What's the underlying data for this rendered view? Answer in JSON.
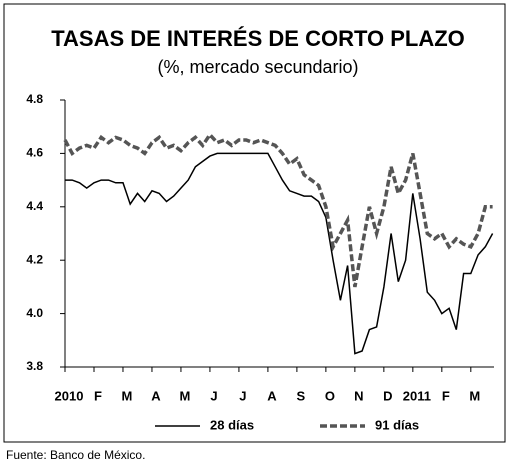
{
  "chart_data": {
    "type": "line",
    "title": "TASAS DE INTERÉS DE CORTO PLAZO",
    "subtitle": "(%, mercado secundario)",
    "source": "Fuente: Banco de México.",
    "x": [
      0,
      0.25,
      0.5,
      0.75,
      1,
      1.25,
      1.5,
      1.75,
      2,
      2.25,
      2.5,
      2.75,
      3,
      3.25,
      3.5,
      3.75,
      4,
      4.25,
      4.5,
      4.75,
      5,
      5.25,
      5.5,
      5.75,
      6,
      6.25,
      6.5,
      6.75,
      7,
      7.25,
      7.5,
      7.75,
      8,
      8.25,
      8.5,
      8.75,
      9,
      9.25,
      9.5,
      9.75,
      10,
      10.25,
      10.5,
      10.75,
      11,
      11.25,
      11.5,
      11.75,
      12,
      12.25,
      12.5,
      12.75,
      13,
      13.25,
      13.5,
      13.75,
      14,
      14.25,
      14.5,
      14.75
    ],
    "series": [
      {
        "name": "28 días",
        "color": "#000000",
        "style": "solid",
        "values": [
          4.5,
          4.5,
          4.49,
          4.47,
          4.49,
          4.5,
          4.5,
          4.49,
          4.49,
          4.41,
          4.45,
          4.42,
          4.46,
          4.45,
          4.42,
          4.44,
          4.47,
          4.5,
          4.55,
          4.57,
          4.59,
          4.6,
          4.6,
          4.6,
          4.6,
          4.6,
          4.6,
          4.6,
          4.6,
          4.55,
          4.5,
          4.46,
          4.45,
          4.44,
          4.44,
          4.42,
          4.36,
          4.2,
          4.05,
          4.18,
          3.85,
          3.86,
          3.94,
          3.95,
          4.1,
          4.3,
          4.12,
          4.2,
          4.45,
          4.28,
          4.08,
          4.05,
          4.0,
          4.02,
          3.94,
          4.15,
          4.15,
          4.22,
          4.25,
          4.3
        ]
      },
      {
        "name": "91 días",
        "color": "#555555",
        "style": "dashed",
        "values": [
          4.65,
          4.6,
          4.62,
          4.63,
          4.62,
          4.66,
          4.64,
          4.66,
          4.65,
          4.63,
          4.62,
          4.6,
          4.64,
          4.66,
          4.62,
          4.63,
          4.61,
          4.64,
          4.66,
          4.63,
          4.67,
          4.64,
          4.65,
          4.63,
          4.65,
          4.65,
          4.64,
          4.65,
          4.64,
          4.63,
          4.6,
          4.56,
          4.58,
          4.52,
          4.5,
          4.48,
          4.4,
          4.25,
          4.3,
          4.35,
          4.1,
          4.25,
          4.4,
          4.3,
          4.4,
          4.55,
          4.45,
          4.5,
          4.6,
          4.45,
          4.3,
          4.28,
          4.3,
          4.25,
          4.28,
          4.26,
          4.25,
          4.3,
          4.4,
          4.4
        ]
      }
    ],
    "xlim": [
      0,
      14.8
    ],
    "xticks": [
      {
        "value": 0,
        "label": "2010"
      },
      {
        "value": 1,
        "label": "F"
      },
      {
        "value": 2,
        "label": "M"
      },
      {
        "value": 3,
        "label": "A"
      },
      {
        "value": 4,
        "label": "M"
      },
      {
        "value": 5,
        "label": "J"
      },
      {
        "value": 6,
        "label": "J"
      },
      {
        "value": 7,
        "label": "A"
      },
      {
        "value": 8,
        "label": "S"
      },
      {
        "value": 9,
        "label": "O"
      },
      {
        "value": 10,
        "label": "N"
      },
      {
        "value": 11,
        "label": "D"
      },
      {
        "value": 12,
        "label": "2011"
      },
      {
        "value": 13,
        "label": "F"
      },
      {
        "value": 14,
        "label": "M"
      }
    ],
    "ylim": [
      3.8,
      4.8
    ],
    "yticks": [
      3.8,
      {
        "value": 4.0,
        "label": "4.0"
      },
      4.2,
      4.4,
      4.6,
      4.8
    ],
    "grid": false
  }
}
